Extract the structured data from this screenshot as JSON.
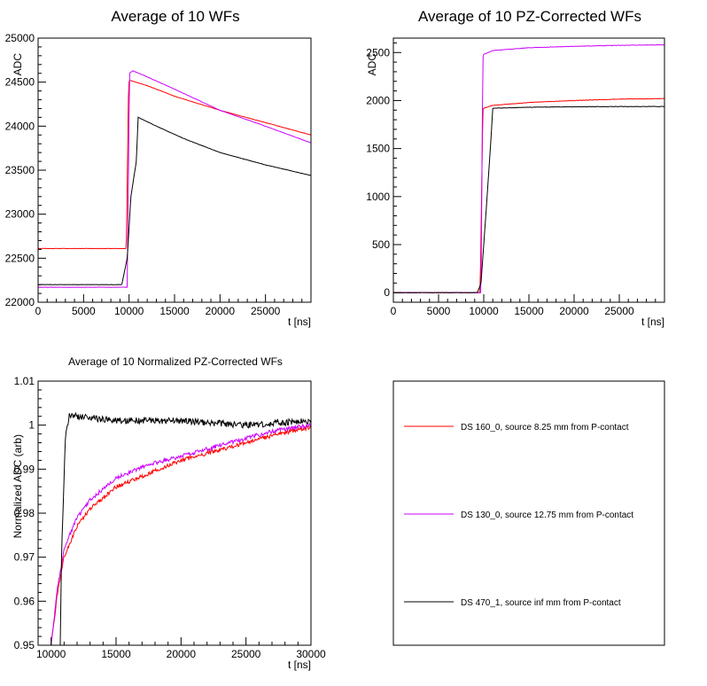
{
  "chart_data": [
    {
      "type": "line",
      "title": "Average of 10 WFs",
      "xlabel": "t [ns]",
      "ylabel": "ADC",
      "xlim": [
        0,
        30000
      ],
      "ylim": [
        22000,
        25000
      ],
      "xticks": [
        0,
        5000,
        10000,
        15000,
        20000,
        25000
      ],
      "yticks": [
        22000,
        22500,
        23000,
        23500,
        24000,
        24500,
        25000
      ],
      "xtick_labels": [
        "0",
        "5000",
        "10000",
        "15000",
        "20000",
        "25000"
      ],
      "ytick_labels": [
        "22000",
        "22500",
        "23000",
        "23500",
        "24000",
        "24500",
        "25000"
      ],
      "grid": false,
      "series": [
        {
          "color": "#ff0000",
          "x": [
            0,
            9700,
            9950,
            10100,
            12000,
            15000,
            20000,
            25000,
            30000
          ],
          "y": [
            22610,
            22610,
            24500,
            24520,
            24460,
            24340,
            24180,
            24040,
            23900
          ]
        },
        {
          "color": "#cc00ff",
          "x": [
            0,
            9800,
            10050,
            10400,
            12000,
            15000,
            20000,
            25000,
            30000
          ],
          "y": [
            22170,
            22170,
            24600,
            24630,
            24560,
            24420,
            24180,
            24000,
            23810
          ]
        },
        {
          "color": "#000000",
          "x": [
            0,
            9200,
            9800,
            10200,
            10800,
            11000,
            13000,
            16000,
            20000,
            25000,
            30000
          ],
          "y": [
            22200,
            22200,
            22500,
            23200,
            23600,
            24100,
            24000,
            23860,
            23700,
            23560,
            23440
          ]
        }
      ]
    },
    {
      "type": "line",
      "title": "Average of 10 PZ-Corrected WFs",
      "xlabel": "t [ns]",
      "ylabel": "ADC",
      "xlim": [
        0,
        30000
      ],
      "ylim": [
        -100,
        2650
      ],
      "xticks": [
        0,
        5000,
        10000,
        15000,
        20000,
        25000
      ],
      "yticks": [
        0,
        500,
        1000,
        1500,
        2000,
        2500
      ],
      "xtick_labels": [
        "0",
        "5000",
        "10000",
        "15000",
        "20000",
        "25000"
      ],
      "ytick_labels": [
        "0",
        "500",
        "1000",
        "1500",
        "2000",
        "2500"
      ],
      "grid": false,
      "series": [
        {
          "color": "#ff0000",
          "x": [
            0,
            9600,
            9900,
            10000,
            11000,
            15000,
            20000,
            25000,
            30000
          ],
          "y": [
            0,
            0,
            1900,
            1920,
            1950,
            1980,
            2000,
            2015,
            2020
          ]
        },
        {
          "color": "#cc00ff",
          "x": [
            0,
            9700,
            9900,
            10000,
            11000,
            15000,
            20000,
            25000,
            30000
          ],
          "y": [
            0,
            0,
            2450,
            2480,
            2520,
            2550,
            2565,
            2575,
            2580
          ]
        },
        {
          "color": "#000000",
          "x": [
            0,
            9300,
            9700,
            10300,
            10800,
            11000,
            15000,
            20000,
            25000,
            30000
          ],
          "y": [
            0,
            0,
            100,
            900,
            1600,
            1920,
            1930,
            1935,
            1937,
            1938
          ]
        }
      ]
    },
    {
      "type": "line",
      "title": "Average of 10 Normalized PZ-Corrected WFs",
      "xlabel": "t [ns]",
      "ylabel": "Normalized ADC (arb)",
      "xlim": [
        9000,
        30000
      ],
      "ylim": [
        0.95,
        1.01
      ],
      "xticks": [
        10000,
        15000,
        20000,
        25000,
        30000
      ],
      "yticks": [
        0.95,
        0.96,
        0.97,
        0.98,
        0.99,
        1.0,
        1.01
      ],
      "xtick_labels": [
        "10000",
        "15000",
        "20000",
        "25000",
        "30000"
      ],
      "ytick_labels": [
        "0.95",
        "0.96",
        "0.97",
        "0.98",
        "0.99",
        "1",
        "1.01"
      ],
      "grid": false,
      "series": [
        {
          "color": "#ff0000",
          "x": [
            10000,
            10500,
            11000,
            12000,
            13000,
            15000,
            17500,
            20000,
            22500,
            25000,
            27500,
            30000
          ],
          "y": [
            0.95,
            0.962,
            0.97,
            0.977,
            0.981,
            0.986,
            0.989,
            0.992,
            0.994,
            0.996,
            0.998,
            0.9995
          ]
        },
        {
          "color": "#cc00ff",
          "x": [
            10000,
            10500,
            11000,
            12000,
            13000,
            15000,
            17500,
            20000,
            22500,
            25000,
            27500,
            30000
          ],
          "y": [
            0.95,
            0.963,
            0.972,
            0.979,
            0.983,
            0.988,
            0.991,
            0.993,
            0.995,
            0.997,
            0.999,
            1.0
          ]
        },
        {
          "color": "#000000",
          "x": [
            10700,
            10800,
            11100,
            11400,
            12000,
            15000,
            20000,
            25000,
            30000
          ],
          "y": [
            0.95,
            0.97,
            0.997,
            1.002,
            1.002,
            1.001,
            1.001,
            1.0,
            1.001
          ]
        }
      ]
    }
  ],
  "legend": {
    "placement": "bottom-right pad",
    "entries": [
      {
        "label": "DS 160_0, source 8.25 mm from P-contact",
        "color": "#ff0000"
      },
      {
        "label": "DS 130_0, source 12.75 mm from P-contact",
        "color": "#cc00ff"
      },
      {
        "label": "DS 470_1, source inf mm from P-contact",
        "color": "#000000"
      }
    ]
  }
}
